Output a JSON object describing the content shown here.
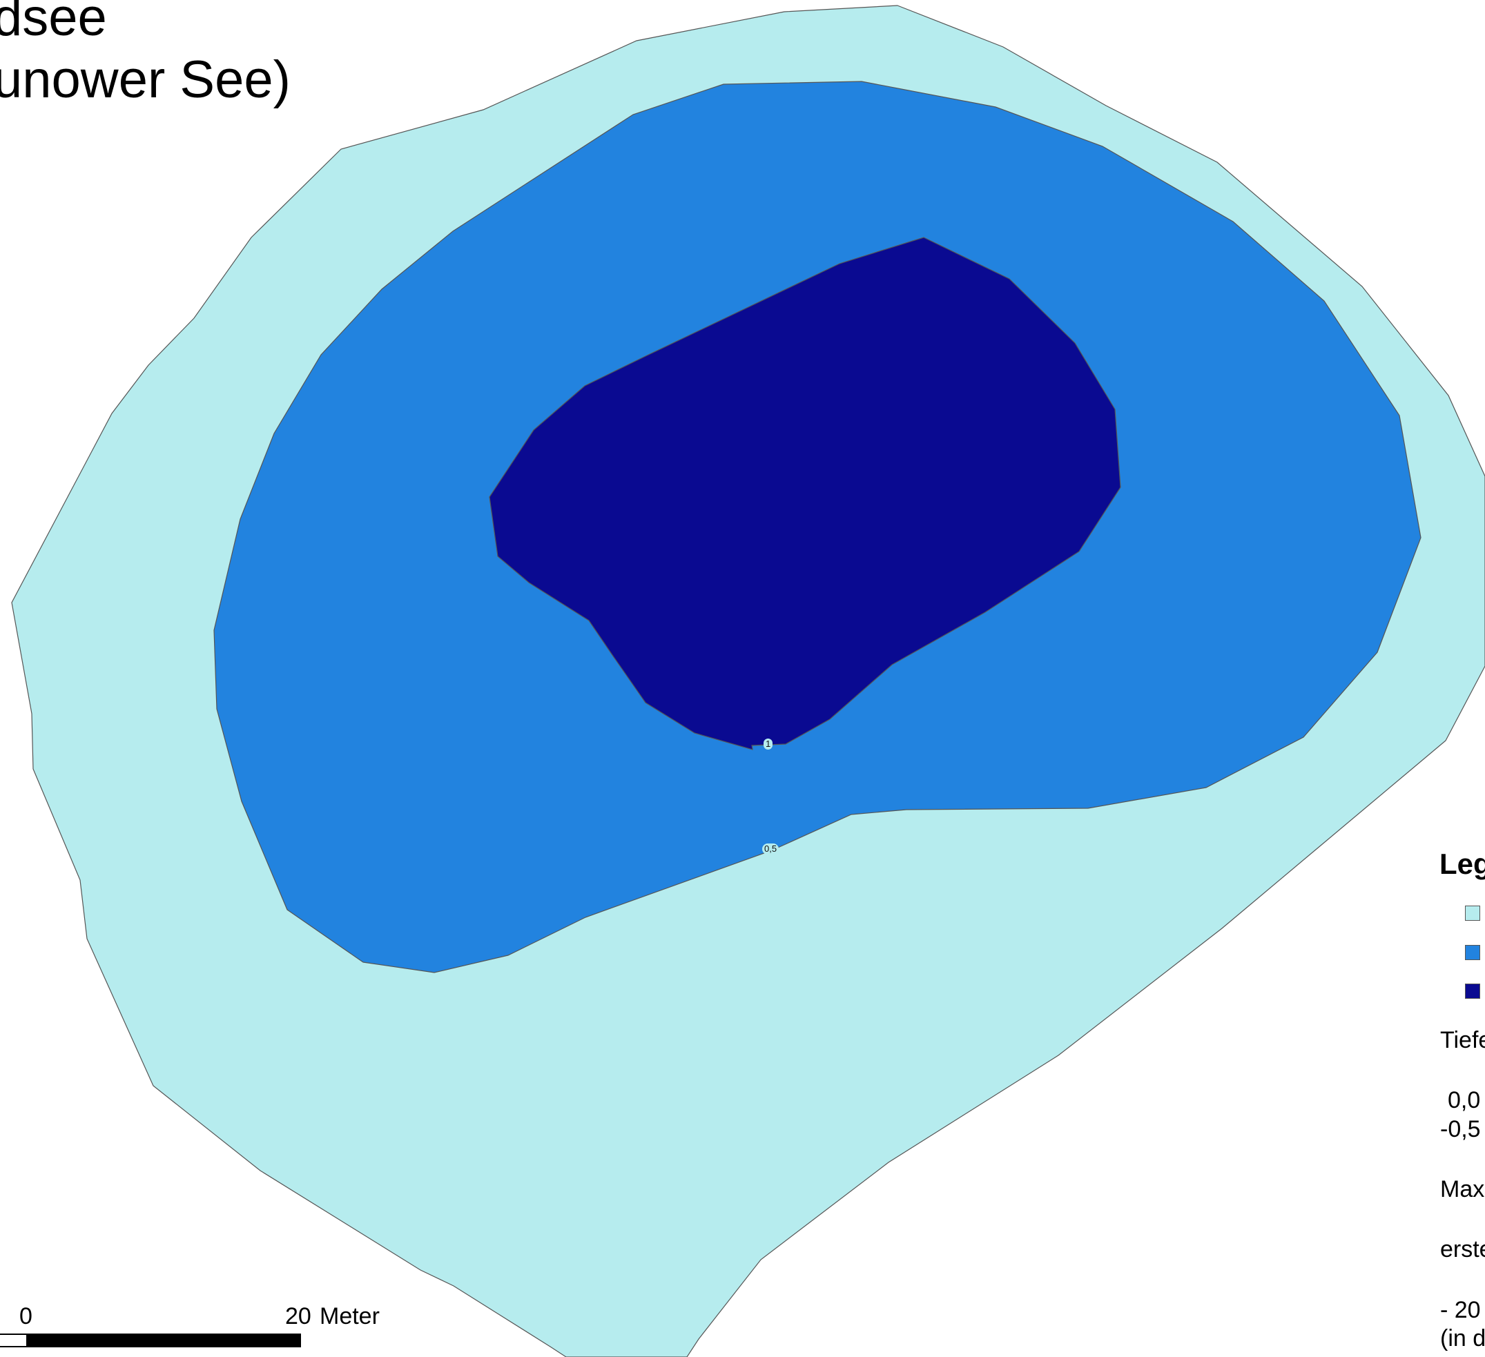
{
  "map": {
    "title_line_1": "dsee",
    "title_line_2": "unower See)",
    "colors": {
      "zone_shallow": "#b6ecee",
      "zone_mid": "#2283df",
      "zone_deep": "#0a0a91",
      "outline": "#555555"
    },
    "contour_labels": {
      "depth_1": "1",
      "depth_0_5": "0,5"
    }
  },
  "legend": {
    "heading": "Leg",
    "items": [
      {
        "color": "#b6ecee",
        "label": ""
      },
      {
        "color": "#2283df",
        "label": ""
      },
      {
        "color": "#0a0a91",
        "label": ""
      }
    ],
    "text_tiefe": "Tiefe",
    "text_range_1": "0,0",
    "text_range_2": "-0,5",
    "text_max": "Max",
    "text_erst": "erste",
    "text_bottom_1": "- 20",
    "text_bottom_2": "(in d"
  },
  "scale_bar": {
    "label_start": "0",
    "label_end": "20",
    "unit": "Meter"
  }
}
